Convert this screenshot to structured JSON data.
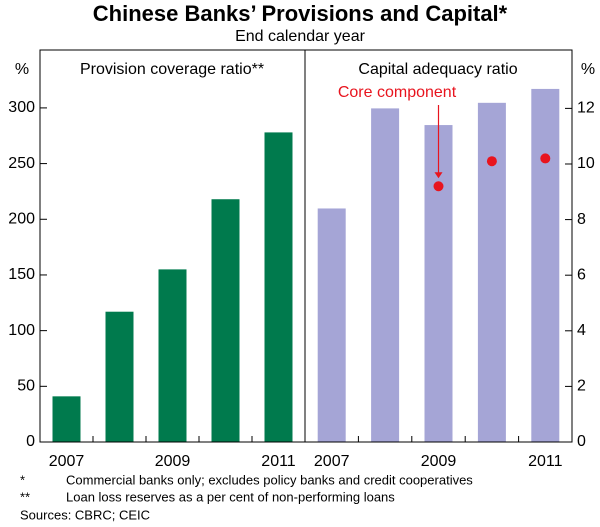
{
  "title": "Chinese Banks’ Provisions and Capital*",
  "subtitle": "End calendar year",
  "notes": [
    {
      "mark": "*",
      "text": "Commercial banks only; excludes policy banks and credit cooperatives"
    },
    {
      "mark": "**",
      "text": "Loan loss reserves as a per cent of non-performing loans"
    }
  ],
  "sources": "Sources: CBRC; CEIC",
  "chart_data": [
    {
      "type": "bar",
      "title": "Provision coverage ratio**",
      "y_label": "%",
      "categories": [
        "2007",
        null,
        "2009",
        null,
        "2011"
      ],
      "values": [
        41,
        117,
        155,
        218,
        278
      ],
      "color": "#007a4d",
      "ylim": [
        0,
        352
      ],
      "yticks": [
        0,
        50,
        100,
        150,
        200,
        250,
        300
      ]
    },
    {
      "type": "bar",
      "title": "Capital adequacy ratio",
      "y_label": "%",
      "categories": [
        "2007",
        null,
        "2009",
        null,
        "2011"
      ],
      "values": [
        8.4,
        12.0,
        11.4,
        12.2,
        12.7
      ],
      "color": "#a5a5d6",
      "points": {
        "name": "Core component",
        "color": "#e8141e",
        "values": [
          null,
          null,
          9.2,
          10.1,
          10.2
        ]
      },
      "ylim": [
        0,
        14.1
      ],
      "yticks": [
        0,
        2,
        4,
        6,
        8,
        10,
        12
      ]
    }
  ]
}
